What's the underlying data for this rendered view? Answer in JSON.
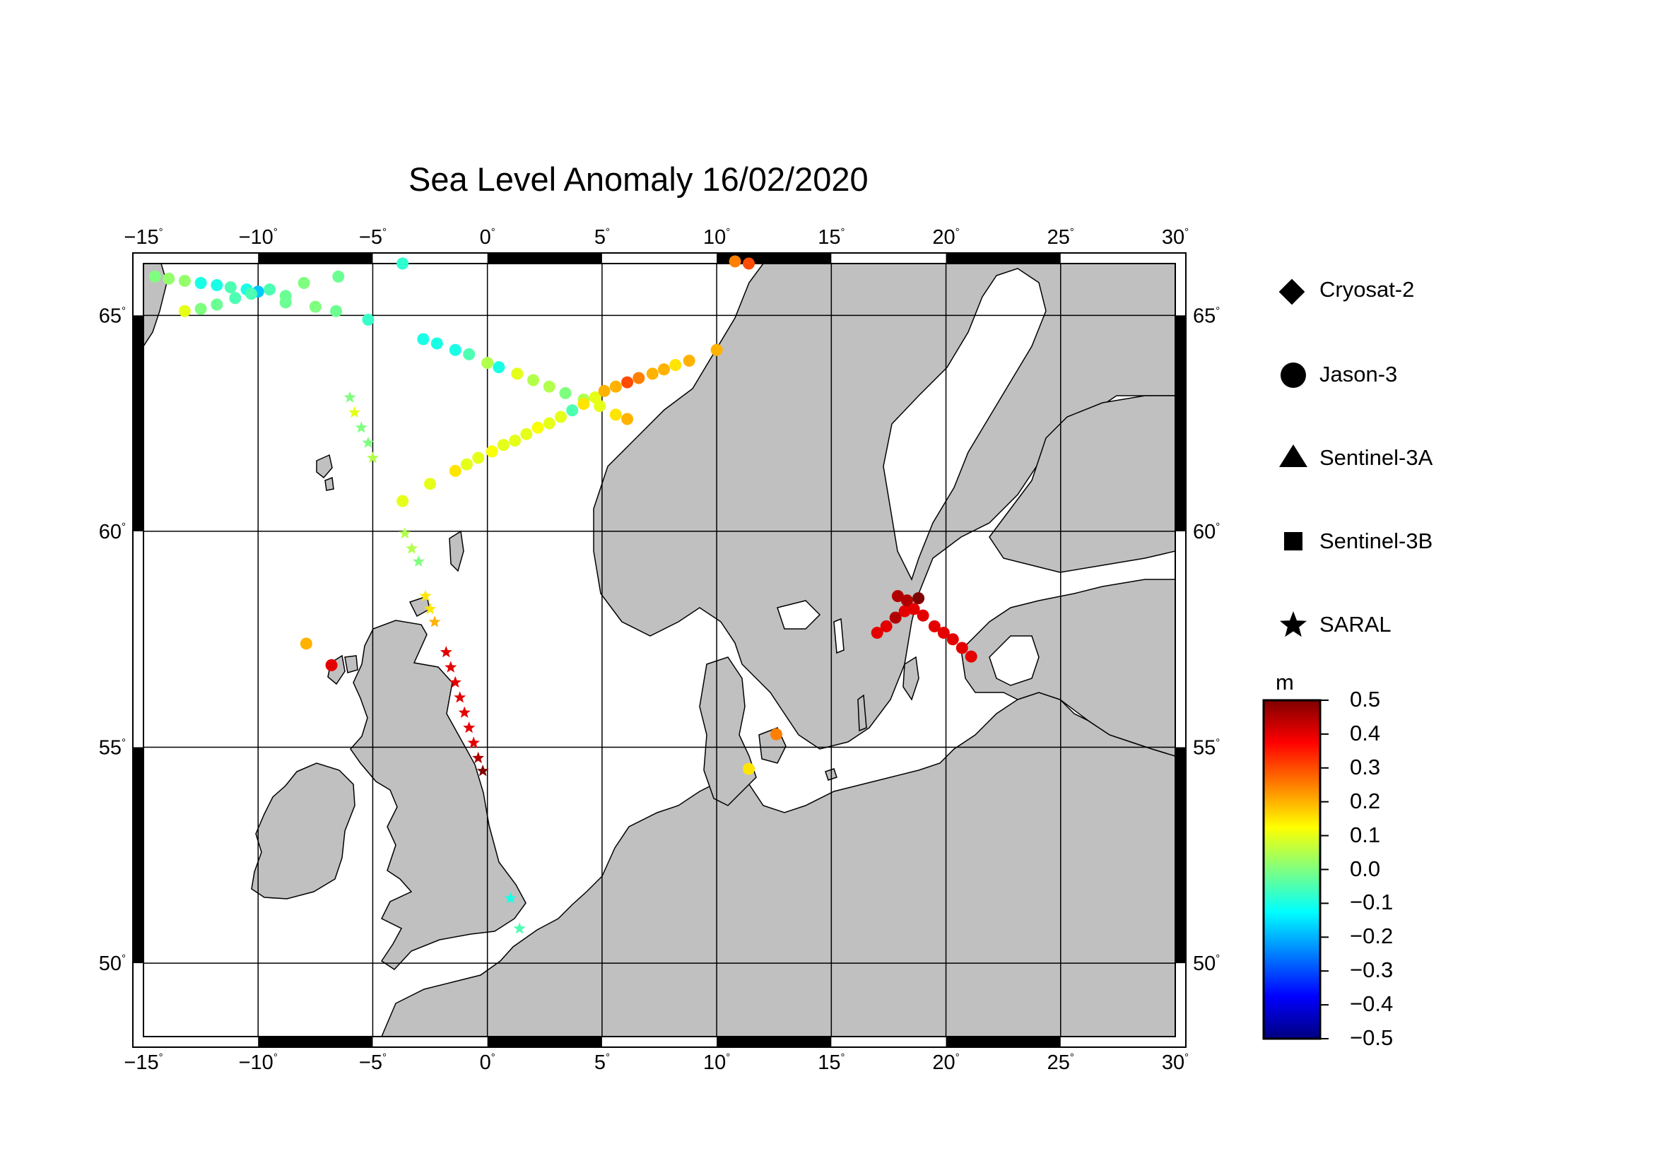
{
  "title": "Sea Level Anomaly 16/02/2020",
  "map": {
    "lon_range": [
      -15,
      30
    ],
    "lat_range": [
      48.3,
      66.2
    ],
    "lon_ticks": [
      "-15",
      "-10",
      "-5",
      "0",
      "5",
      "10",
      "15",
      "20",
      "25",
      "30"
    ],
    "lat_ticks": [
      "50",
      "55",
      "60",
      "65"
    ],
    "land_color": "#c0c0c0",
    "sea_color": "#ffffff"
  },
  "legend": {
    "items": [
      {
        "label": "Cryosat-2",
        "marker": "diamond"
      },
      {
        "label": "Jason-3",
        "marker": "circle"
      },
      {
        "label": "Sentinel-3A",
        "marker": "triangle"
      },
      {
        "label": "Sentinel-3B",
        "marker": "square"
      },
      {
        "label": "SARAL",
        "marker": "star"
      }
    ]
  },
  "colorbar": {
    "unit": "m",
    "min": -0.5,
    "max": 0.5,
    "labels": [
      "0.5",
      "0.4",
      "0.3",
      "0.2",
      "0.1",
      "0.0",
      "-0.1",
      "-0.2",
      "-0.3",
      "-0.4",
      "-0.5"
    ],
    "colors": [
      "#00007f",
      "#0000ff",
      "#007fff",
      "#00ffff",
      "#7fff7f",
      "#ffff00",
      "#ff7f00",
      "#ff0000",
      "#7f0000"
    ]
  },
  "chart_data": {
    "type": "scatter",
    "title": "Sea Level Anomaly 16/02/2020",
    "x_units": "degrees longitude",
    "y_units": "degrees latitude",
    "value_units": "m",
    "series": [
      {
        "name": "Jason-3",
        "marker": "circle",
        "points": [
          [
            -14.5,
            65.9,
            0.0
          ],
          [
            -13.9,
            65.85,
            0.02
          ],
          [
            -13.2,
            65.8,
            0.02
          ],
          [
            -12.5,
            65.75,
            -0.1
          ],
          [
            -11.8,
            65.7,
            -0.1
          ],
          [
            -11.2,
            65.65,
            -0.05
          ],
          [
            -10.5,
            65.6,
            -0.1
          ],
          [
            -10.0,
            65.55,
            -0.18
          ],
          [
            -9.5,
            65.6,
            -0.05
          ],
          [
            -8.8,
            65.45,
            -0.02
          ],
          [
            -8.0,
            65.75,
            0.0
          ],
          [
            -6.5,
            65.9,
            -0.02
          ],
          [
            -13.2,
            65.1,
            0.1
          ],
          [
            -12.5,
            65.15,
            0.0
          ],
          [
            -11.8,
            65.25,
            -0.02
          ],
          [
            -11.0,
            65.4,
            -0.05
          ],
          [
            -10.3,
            65.5,
            -0.05
          ],
          [
            -8.8,
            65.3,
            -0.02
          ],
          [
            -7.5,
            65.2,
            0.0
          ],
          [
            -6.6,
            65.1,
            -0.02
          ],
          [
            -5.2,
            64.9,
            -0.07
          ],
          [
            -3.7,
            66.2,
            -0.08
          ],
          [
            -2.8,
            64.45,
            -0.1
          ],
          [
            -2.2,
            64.35,
            -0.1
          ],
          [
            -1.4,
            64.2,
            -0.1
          ],
          [
            -0.8,
            64.1,
            -0.05
          ],
          [
            0.0,
            63.9,
            0.05
          ],
          [
            0.5,
            63.8,
            -0.1
          ],
          [
            1.3,
            63.65,
            0.1
          ],
          [
            2.0,
            63.5,
            0.05
          ],
          [
            2.7,
            63.35,
            0.05
          ],
          [
            3.4,
            63.2,
            0.0
          ],
          [
            4.2,
            63.05,
            0.05
          ],
          [
            4.9,
            62.9,
            0.1
          ],
          [
            5.6,
            62.7,
            0.15
          ],
          [
            6.1,
            62.6,
            0.2
          ],
          [
            -3.7,
            60.7,
            0.1
          ],
          [
            -2.5,
            61.1,
            0.1
          ],
          [
            -1.4,
            61.4,
            0.15
          ],
          [
            -0.9,
            61.55,
            0.1
          ],
          [
            -0.4,
            61.7,
            0.1
          ],
          [
            0.2,
            61.85,
            0.12
          ],
          [
            0.7,
            62.0,
            0.1
          ],
          [
            1.2,
            62.1,
            0.1
          ],
          [
            1.7,
            62.25,
            0.1
          ],
          [
            2.2,
            62.4,
            0.12
          ],
          [
            2.7,
            62.5,
            0.1
          ],
          [
            3.2,
            62.65,
            0.1
          ],
          [
            3.7,
            62.8,
            -0.05
          ],
          [
            4.2,
            62.95,
            0.15
          ],
          [
            4.7,
            63.1,
            0.1
          ],
          [
            5.1,
            63.25,
            0.2
          ],
          [
            5.6,
            63.35,
            0.2
          ],
          [
            6.1,
            63.45,
            0.3
          ],
          [
            6.6,
            63.55,
            0.25
          ],
          [
            7.2,
            63.65,
            0.2
          ],
          [
            7.7,
            63.75,
            0.2
          ],
          [
            8.2,
            63.85,
            0.15
          ],
          [
            8.8,
            63.95,
            0.2
          ],
          [
            10.0,
            64.2,
            0.2
          ],
          [
            10.8,
            66.25,
            0.25
          ],
          [
            11.4,
            66.2,
            0.3
          ],
          [
            -7.9,
            57.4,
            0.2
          ],
          [
            -6.8,
            56.9,
            0.4
          ],
          [
            12.6,
            55.3,
            0.25
          ],
          [
            11.4,
            54.5,
            0.15
          ],
          [
            17.0,
            57.65,
            0.4
          ],
          [
            17.4,
            57.8,
            0.4
          ],
          [
            17.8,
            58.0,
            0.45
          ],
          [
            18.2,
            58.15,
            0.4
          ],
          [
            17.9,
            58.5,
            0.45
          ],
          [
            18.3,
            58.4,
            0.45
          ],
          [
            18.8,
            58.45,
            0.5
          ],
          [
            18.6,
            58.2,
            0.4
          ],
          [
            19.0,
            58.05,
            0.4
          ],
          [
            19.5,
            57.8,
            0.4
          ],
          [
            19.9,
            57.65,
            0.4
          ],
          [
            20.3,
            57.5,
            0.4
          ],
          [
            20.7,
            57.3,
            0.4
          ],
          [
            21.1,
            57.1,
            0.4
          ]
        ]
      },
      {
        "name": "SARAL",
        "marker": "star",
        "points": [
          [
            -6.0,
            63.1,
            0.0
          ],
          [
            -5.8,
            62.75,
            0.1
          ],
          [
            -5.5,
            62.4,
            0.0
          ],
          [
            -5.2,
            62.05,
            0.0
          ],
          [
            -5.0,
            61.7,
            0.05
          ],
          [
            -3.6,
            59.95,
            0.05
          ],
          [
            -3.3,
            59.6,
            0.05
          ],
          [
            -3.0,
            59.3,
            0.0
          ],
          [
            -2.7,
            58.5,
            0.15
          ],
          [
            -2.5,
            58.2,
            0.15
          ],
          [
            -2.3,
            57.9,
            0.2
          ],
          [
            -1.8,
            57.2,
            0.4
          ],
          [
            -1.6,
            56.85,
            0.4
          ],
          [
            -1.4,
            56.5,
            0.4
          ],
          [
            -1.2,
            56.15,
            0.4
          ],
          [
            -1.0,
            55.8,
            0.4
          ],
          [
            -0.8,
            55.45,
            0.4
          ],
          [
            -0.6,
            55.1,
            0.4
          ],
          [
            -0.4,
            54.75,
            0.45
          ],
          [
            -0.2,
            54.45,
            0.5
          ],
          [
            1.0,
            51.5,
            -0.1
          ],
          [
            1.4,
            50.8,
            -0.05
          ]
        ]
      }
    ]
  }
}
